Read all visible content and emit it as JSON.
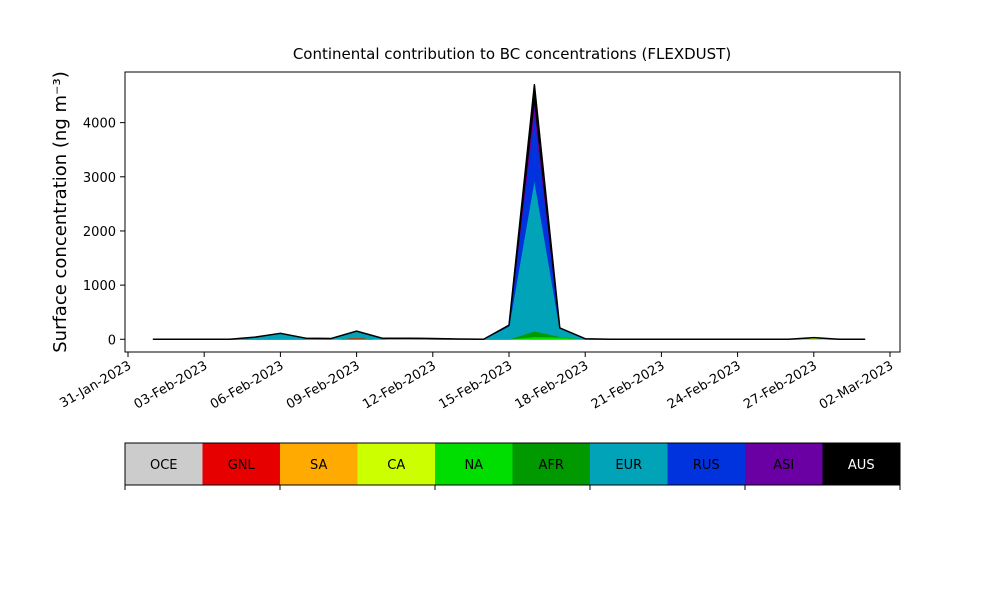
{
  "chart_data": {
    "type": "stacked-area",
    "title": "Continental contribution to BC concentrations (FLEXDUST)",
    "y_label": "Surface concentration (ng m⁻³)",
    "x": [
      "01-Feb-2023",
      "02-Feb-2023",
      "03-Feb-2023",
      "04-Feb-2023",
      "05-Feb-2023",
      "06-Feb-2023",
      "07-Feb-2023",
      "08-Feb-2023",
      "09-Feb-2023",
      "10-Feb-2023",
      "11-Feb-2023",
      "12-Feb-2023",
      "13-Feb-2023",
      "14-Feb-2023",
      "15-Feb-2023",
      "16-Feb-2023",
      "17-Feb-2023",
      "18-Feb-2023",
      "19-Feb-2023",
      "20-Feb-2023",
      "21-Feb-2023",
      "22-Feb-2023",
      "23-Feb-2023",
      "24-Feb-2023",
      "25-Feb-2023",
      "26-Feb-2023",
      "27-Feb-2023",
      "28-Feb-2023",
      "01-Mar-2023"
    ],
    "series": [
      {
        "name": "OCE",
        "color": "#cccccc",
        "values": [
          0,
          0,
          0,
          0,
          0,
          0,
          0,
          0,
          0,
          0,
          0,
          0,
          0,
          0,
          0,
          0,
          0,
          0,
          0,
          0,
          0,
          0,
          0,
          0,
          0,
          0,
          0,
          0,
          0
        ]
      },
      {
        "name": "GNL",
        "color": "#e60000",
        "values": [
          0,
          0,
          0,
          0,
          0,
          0,
          0,
          0,
          30,
          0,
          10,
          0,
          0,
          0,
          0,
          0,
          0,
          0,
          0,
          0,
          0,
          0,
          0,
          0,
          0,
          0,
          0,
          0,
          0
        ]
      },
      {
        "name": "SA",
        "color": "#ffaa00",
        "values": [
          0,
          0,
          0,
          0,
          0,
          0,
          0,
          0,
          0,
          0,
          0,
          0,
          0,
          0,
          0,
          0,
          0,
          0,
          0,
          0,
          0,
          0,
          0,
          0,
          0,
          0,
          10,
          0,
          0
        ]
      },
      {
        "name": "CA",
        "color": "#ccff00",
        "values": [
          0,
          0,
          0,
          0,
          0,
          0,
          0,
          0,
          0,
          0,
          0,
          0,
          0,
          0,
          0,
          0,
          0,
          0,
          0,
          0,
          0,
          0,
          0,
          0,
          0,
          0,
          15,
          0,
          0
        ]
      },
      {
        "name": "NA",
        "color": "#00dd00",
        "values": [
          0,
          0,
          0,
          0,
          0,
          0,
          0,
          0,
          0,
          0,
          0,
          0,
          0,
          0,
          0,
          50,
          40,
          0,
          0,
          0,
          0,
          0,
          0,
          0,
          0,
          0,
          0,
          0,
          0
        ]
      },
      {
        "name": "AFR",
        "color": "#009900",
        "values": [
          0,
          0,
          0,
          0,
          0,
          0,
          0,
          0,
          0,
          0,
          0,
          0,
          0,
          0,
          0,
          100,
          10,
          0,
          0,
          0,
          0,
          0,
          0,
          0,
          0,
          0,
          0,
          0,
          0
        ]
      },
      {
        "name": "EUR",
        "color": "#00a3b8",
        "values": [
          0,
          0,
          0,
          0,
          40,
          110,
          20,
          15,
          120,
          20,
          10,
          15,
          5,
          0,
          240,
          2800,
          160,
          10,
          0,
          0,
          0,
          0,
          0,
          0,
          0,
          0,
          5,
          0,
          0
        ]
      },
      {
        "name": "RUS",
        "color": "#0033dd",
        "values": [
          0,
          0,
          0,
          0,
          0,
          0,
          0,
          0,
          0,
          0,
          0,
          0,
          0,
          0,
          20,
          1200,
          0,
          0,
          0,
          0,
          0,
          0,
          0,
          0,
          0,
          0,
          0,
          0,
          0
        ]
      },
      {
        "name": "ASI",
        "color": "#6a00a3",
        "values": [
          0,
          0,
          0,
          0,
          0,
          0,
          0,
          0,
          0,
          0,
          0,
          0,
          0,
          0,
          0,
          300,
          0,
          0,
          0,
          0,
          0,
          0,
          0,
          0,
          0,
          0,
          0,
          0,
          0
        ]
      },
      {
        "name": "AUS",
        "color": "#000000",
        "values": [
          0,
          0,
          0,
          0,
          0,
          0,
          0,
          0,
          0,
          0,
          0,
          0,
          0,
          0,
          0,
          250,
          0,
          0,
          0,
          0,
          0,
          0,
          0,
          0,
          0,
          0,
          0,
          0,
          0
        ]
      }
    ],
    "xlim": [
      "31-Jan-2023",
      "02-Mar-2023"
    ],
    "xticks": [
      "31-Jan-2023",
      "03-Feb-2023",
      "06-Feb-2023",
      "09-Feb-2023",
      "12-Feb-2023",
      "15-Feb-2023",
      "18-Feb-2023",
      "21-Feb-2023",
      "24-Feb-2023",
      "27-Feb-2023",
      "02-Mar-2023"
    ],
    "ylim": [
      -235,
      4935
    ],
    "yticks": [
      0,
      1000,
      2000,
      3000,
      4000
    ]
  }
}
